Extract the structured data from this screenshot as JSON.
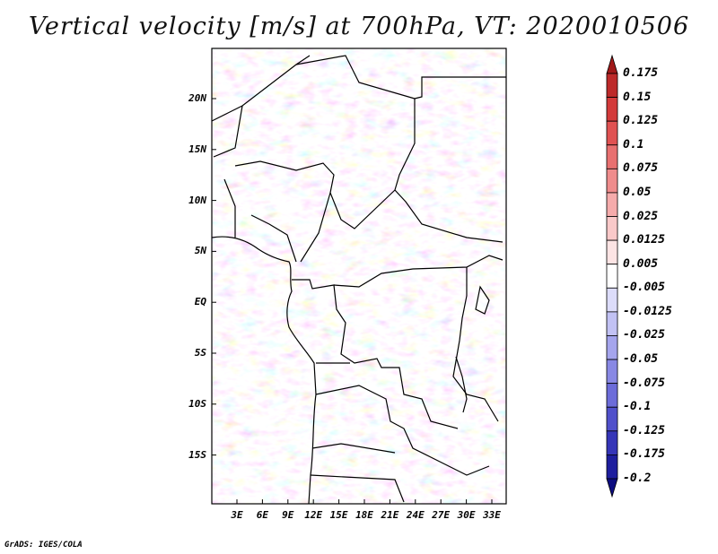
{
  "title": "Vertical velocity [m/s] at 700hPa, VT: 2020010506",
  "credit": "GrADS: IGES/COLA",
  "map": {
    "lat_labels": [
      "20N",
      "15N",
      "10N",
      "5N",
      "EQ",
      "5S",
      "10S",
      "15S"
    ],
    "lon_labels": [
      "3E",
      "6E",
      "9E",
      "12E",
      "15E",
      "18E",
      "21E",
      "24E",
      "27E",
      "30E",
      "33E"
    ]
  },
  "colorbar": {
    "labels": [
      "0.175",
      "0.15",
      "0.125",
      "0.1",
      "0.075",
      "0.05",
      "0.025",
      "0.0125",
      "0.005",
      "-0.005",
      "-0.0125",
      "-0.025",
      "-0.05",
      "-0.075",
      "-0.1",
      "-0.125",
      "-0.175",
      "-0.2"
    ],
    "colors": [
      "#a01919",
      "#bd2a2a",
      "#d33a3a",
      "#e05252",
      "#e87070",
      "#ef8c8c",
      "#f5abab",
      "#f9c9c9",
      "#fce4e4",
      "#ffffff",
      "#dcdcfa",
      "#c2c2f4",
      "#a5a5ed",
      "#8888e4",
      "#6c6cd9",
      "#5050cb",
      "#3535b8",
      "#1e1e9e",
      "#0d0d80"
    ]
  }
}
